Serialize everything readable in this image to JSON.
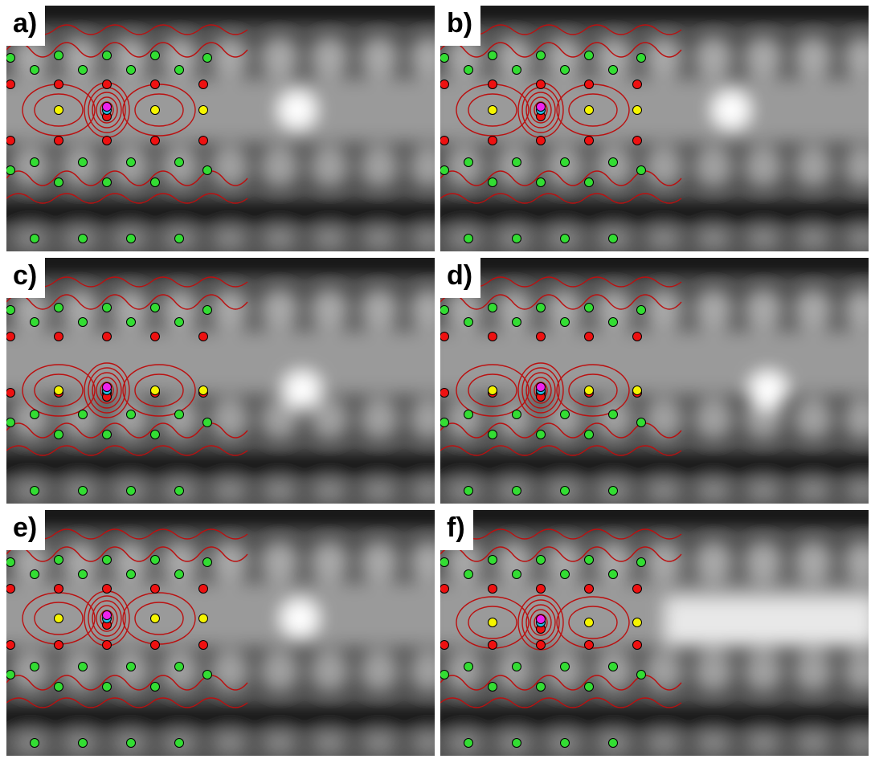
{
  "figure": {
    "panels": [
      {
        "label": "a)",
        "dot_colors": {
          "green": "#33dd33",
          "red": "#ee1111",
          "yellow": "#f5f500",
          "magenta": "#ee22ee",
          "cyan": "#22bbdd"
        },
        "contour_color": "#bb1010"
      },
      {
        "label": "b)"
      },
      {
        "label": "c)"
      },
      {
        "label": "d)"
      },
      {
        "label": "e)"
      },
      {
        "label": "f)"
      }
    ]
  }
}
